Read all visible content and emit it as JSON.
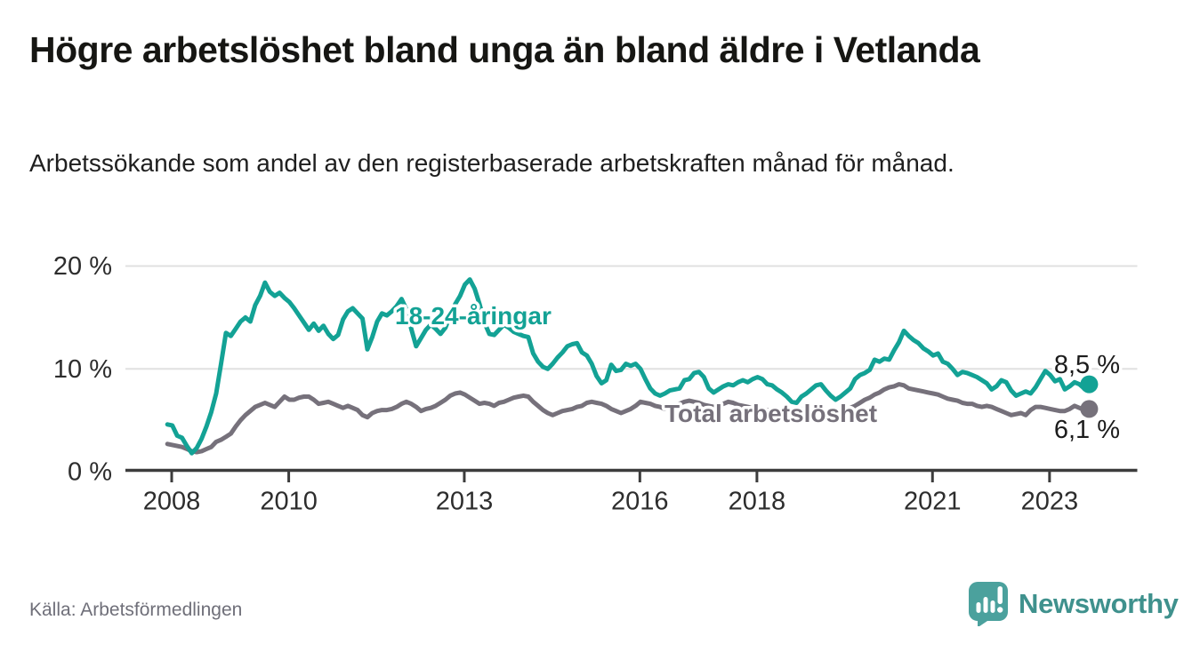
{
  "header": {
    "title": "Högre arbetslöshet bland unga än bland äldre i Vetlanda",
    "subtitle": "Arbetssökande som andel av den registerbaserade arbetskraften månad för månad."
  },
  "chart_data": {
    "type": "line",
    "title": "Högre arbetslöshet bland unga än bland äldre i Vetlanda",
    "subtitle": "Arbetssökande som andel av den registerbaserade arbetskraften månad för månad.",
    "unit": "%",
    "x_start": "2007-12",
    "x_end": "2023-09",
    "x_interval": "month",
    "grid": "horizontal",
    "legend_position": "inline-labels",
    "ylim": [
      0,
      21.8
    ],
    "y_ticks": [
      {
        "label": "0 %",
        "value": 0
      },
      {
        "label": "10 %",
        "value": 10
      },
      {
        "label": "20 %",
        "value": 20
      }
    ],
    "x_ticks": [
      {
        "label": "2008",
        "year": 2008
      },
      {
        "label": "2010",
        "year": 2010
      },
      {
        "label": "2013",
        "year": 2013
      },
      {
        "label": "2016",
        "year": 2016
      },
      {
        "label": "2018",
        "year": 2018
      },
      {
        "label": "2021",
        "year": 2021
      },
      {
        "label": "2023",
        "year": 2023
      }
    ],
    "series": [
      {
        "name": "18-24-åringar",
        "color": "#13a295",
        "line_label": {
          "text": "18-24-åringar",
          "x": 444,
          "y": 365
        },
        "end_dot": true,
        "end_value": 8.5,
        "end_label": {
          "text": "8,5 %",
          "x": 1259,
          "y": 420
        },
        "values": [
          4.6,
          4.5,
          3.5,
          3.3,
          2.5,
          1.8,
          2.3,
          3.2,
          4.4,
          5.8,
          7.6,
          10.5,
          13.5,
          13.2,
          13.9,
          14.6,
          15.0,
          14.6,
          16.2,
          17.1,
          18.4,
          17.5,
          17.1,
          17.4,
          16.9,
          16.5,
          15.9,
          15.2,
          14.5,
          13.8,
          14.4,
          13.7,
          14.2,
          13.4,
          12.9,
          13.3,
          14.8,
          15.6,
          15.9,
          15.4,
          14.9,
          11.9,
          13.1,
          14.6,
          15.4,
          15.2,
          15.6,
          16.1,
          16.8,
          15.8,
          13.9,
          12.2,
          13.0,
          13.8,
          14.3,
          13.9,
          13.4,
          14.0,
          15.2,
          16.3,
          17.1,
          18.2,
          18.7,
          17.8,
          16.3,
          14.5,
          13.4,
          13.3,
          13.8,
          14.3,
          14.0,
          13.6,
          13.4,
          13.2,
          13.1,
          11.5,
          10.7,
          10.2,
          10.0,
          10.5,
          11.1,
          11.6,
          12.2,
          12.4,
          12.5,
          11.6,
          11.3,
          10.5,
          9.3,
          8.6,
          8.9,
          10.4,
          9.8,
          9.9,
          10.5,
          10.3,
          10.5,
          10.0,
          9.0,
          8.1,
          7.6,
          7.4,
          7.6,
          7.9,
          8.0,
          8.1,
          8.9,
          9.0,
          9.6,
          9.7,
          9.2,
          8.1,
          7.7,
          8.0,
          8.3,
          8.5,
          8.4,
          8.7,
          8.9,
          8.7,
          9.0,
          9.2,
          9.0,
          8.5,
          8.4,
          8.0,
          7.7,
          7.3,
          6.8,
          6.7,
          7.3,
          7.6,
          8.0,
          8.4,
          8.5,
          7.9,
          7.4,
          7.0,
          7.3,
          7.7,
          8.1,
          9.0,
          9.4,
          9.6,
          9.9,
          10.9,
          10.7,
          11.0,
          10.9,
          11.8,
          12.6,
          13.7,
          13.2,
          12.8,
          12.5,
          12.0,
          11.7,
          11.3,
          11.5,
          10.7,
          10.5,
          10.0,
          9.4,
          9.7,
          9.6,
          9.4,
          9.2,
          8.9,
          8.6,
          8.0,
          8.3,
          8.9,
          8.7,
          7.9,
          7.4,
          7.6,
          7.8,
          7.6,
          8.2,
          9.0,
          9.8,
          9.4,
          8.8,
          9.0,
          8.0,
          8.3,
          8.7,
          8.5,
          8.1,
          8.5
        ]
      },
      {
        "name": "Total arbetslöshet",
        "color": "#76717b",
        "line_label": {
          "text": "Total arbetslöshet",
          "x": 747,
          "y": 475
        },
        "end_dot": true,
        "end_value": 6.1,
        "end_label": {
          "text": "6,1 %",
          "x": 1259,
          "y": 493
        },
        "values": [
          2.7,
          2.6,
          2.5,
          2.4,
          2.2,
          2.0,
          1.9,
          2.0,
          2.2,
          2.4,
          2.9,
          3.1,
          3.4,
          3.7,
          4.4,
          5.0,
          5.5,
          5.9,
          6.3,
          6.5,
          6.7,
          6.5,
          6.3,
          6.8,
          7.3,
          7.0,
          7.0,
          7.2,
          7.3,
          7.3,
          7.0,
          6.6,
          6.7,
          6.8,
          6.6,
          6.4,
          6.2,
          6.4,
          6.2,
          6.0,
          5.5,
          5.3,
          5.7,
          5.9,
          6.0,
          6.0,
          6.1,
          6.3,
          6.6,
          6.8,
          6.6,
          6.3,
          5.9,
          6.1,
          6.2,
          6.4,
          6.7,
          7.0,
          7.4,
          7.6,
          7.7,
          7.5,
          7.2,
          6.9,
          6.6,
          6.7,
          6.6,
          6.4,
          6.7,
          6.8,
          7.0,
          7.2,
          7.3,
          7.4,
          7.3,
          6.8,
          6.4,
          6.0,
          5.7,
          5.5,
          5.7,
          5.9,
          6.0,
          6.1,
          6.3,
          6.4,
          6.7,
          6.8,
          6.7,
          6.6,
          6.4,
          6.1,
          5.9,
          5.7,
          5.9,
          6.1,
          6.4,
          6.8,
          6.7,
          6.6,
          6.4,
          6.3,
          6.1,
          6.3,
          6.5,
          6.6,
          6.8,
          6.9,
          6.8,
          6.7,
          6.5,
          6.4,
          6.3,
          6.4,
          6.6,
          6.8,
          6.7,
          6.5,
          6.4,
          6.3,
          6.2,
          6.2,
          6.1,
          6.0,
          5.9,
          5.8,
          5.7,
          5.8,
          5.9,
          6.0,
          6.1,
          6.0,
          5.9,
          5.8,
          5.7,
          5.6,
          5.6,
          5.7,
          5.8,
          6.0,
          6.2,
          6.4,
          6.7,
          7.0,
          7.2,
          7.5,
          7.7,
          8.0,
          8.2,
          8.3,
          8.5,
          8.4,
          8.1,
          8.0,
          7.9,
          7.8,
          7.7,
          7.6,
          7.5,
          7.3,
          7.1,
          7.0,
          6.9,
          6.7,
          6.6,
          6.6,
          6.4,
          6.3,
          6.4,
          6.3,
          6.1,
          5.9,
          5.7,
          5.5,
          5.6,
          5.7,
          5.5,
          6.0,
          6.3,
          6.3,
          6.2,
          6.1,
          6.0,
          5.9,
          5.9,
          6.1,
          6.4,
          6.2,
          6.0,
          6.1
        ]
      }
    ]
  },
  "footer": {
    "source": "Källa: Arbetsförmedlingen",
    "brand_name": "Newsworthy",
    "logo_icon": "bar-chart-exclamation-bubble-icon"
  },
  "colors": {
    "young_line": "#13a295",
    "total_line": "#76717b",
    "grid": "#e0e0e0",
    "axis": "#3c3c3c",
    "tick_text": "#2d2d2d",
    "title_text": "#161613",
    "source_text": "#6f6f79",
    "brand_teal": "#3f918d",
    "brand_bubble": "#4ba19d"
  }
}
